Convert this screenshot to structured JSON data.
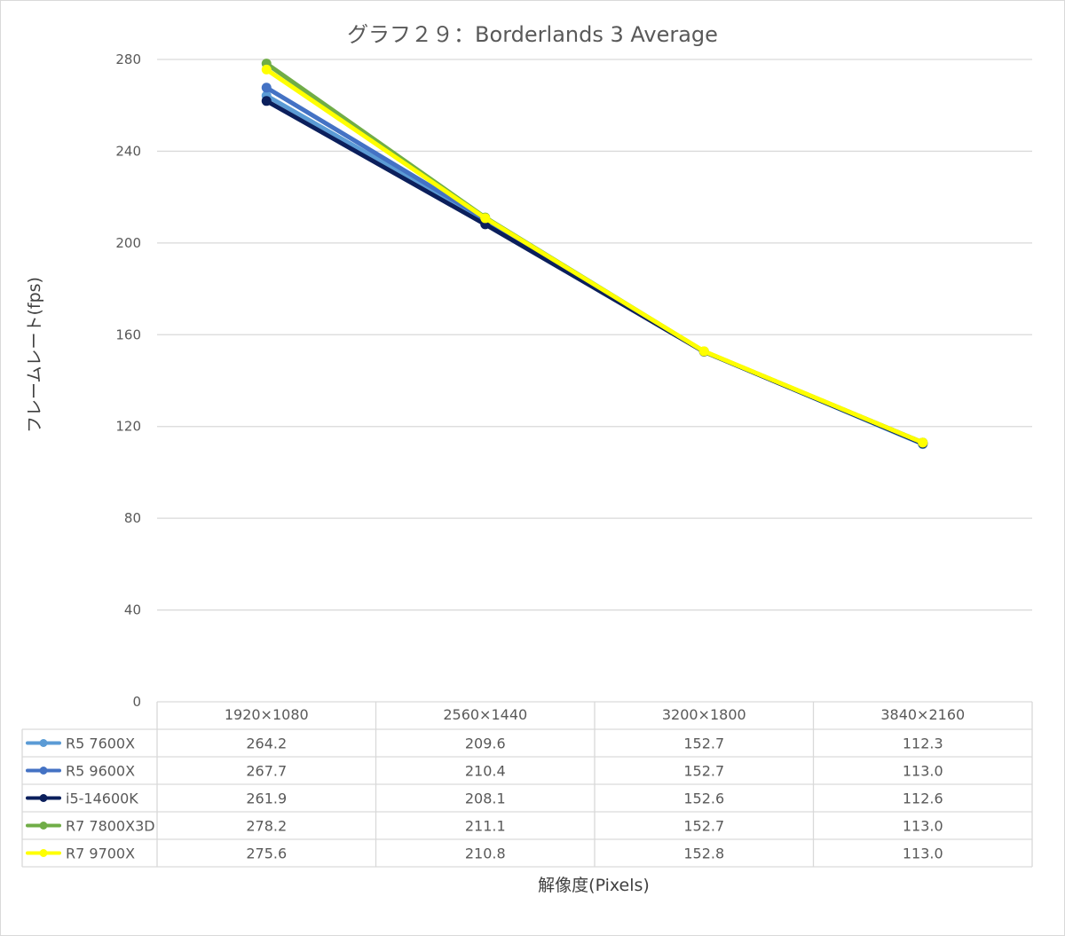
{
  "chart_data": {
    "type": "line",
    "title": "グラフ２９：Borderlands 3 Average",
    "xlabel": "解像度(Pixels)",
    "ylabel": "フレームレート(fps)",
    "ylim": [
      0,
      280
    ],
    "yticks": [
      0,
      40,
      80,
      120,
      160,
      200,
      240,
      280
    ],
    "grid": true,
    "legend": "data-table",
    "categories": [
      "1920×1080",
      "2560×1440",
      "3200×1800",
      "3840×2160"
    ],
    "series": [
      {
        "name": "R5 7600X",
        "color": "#5b9bd5",
        "values": [
          264.2,
          209.6,
          152.7,
          112.3
        ],
        "labels": [
          "264.2",
          "209.6",
          "152.7",
          "112.3"
        ]
      },
      {
        "name": "R5 9600X",
        "color": "#4472c4",
        "values": [
          267.7,
          210.4,
          152.7,
          113.0
        ],
        "labels": [
          "267.7",
          "210.4",
          "152.7",
          "113.0"
        ]
      },
      {
        "name": "i5-14600K",
        "color": "#0b1f5c",
        "values": [
          261.9,
          208.1,
          152.6,
          112.6
        ],
        "labels": [
          "261.9",
          "208.1",
          "152.6",
          "112.6"
        ]
      },
      {
        "name": "R7 7800X3D",
        "color": "#70ad47",
        "values": [
          278.2,
          211.1,
          152.7,
          113.0
        ],
        "labels": [
          "278.2",
          "211.1",
          "152.7",
          "113.0"
        ]
      },
      {
        "name": "R7 9700X",
        "color": "#ffff00",
        "values": [
          275.6,
          210.8,
          152.8,
          113.0
        ],
        "labels": [
          "275.6",
          "210.8",
          "152.8",
          "113.0"
        ]
      }
    ]
  }
}
